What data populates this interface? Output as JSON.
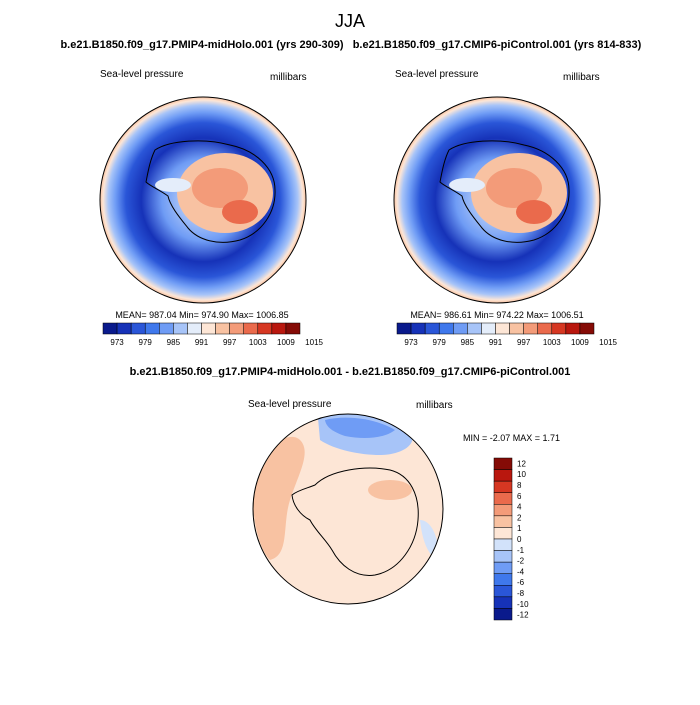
{
  "page_title": "JJA",
  "top_left": {
    "header": "b.e21.B1850.f09_g17.PMIP4-midHolo.001 (yrs 290-309)",
    "label_left": "Sea-level pressure",
    "label_right": "millibars",
    "stats": "MEAN= 987.04  Min= 974.90  Max= 1006.85"
  },
  "top_right": {
    "header": "b.e21.B1850.f09_g17.CMIP6-piControl.001 (yrs 814-833)",
    "label_left": "Sea-level pressure",
    "label_right": "millibars",
    "stats": "MEAN= 986.61  Min= 974.22  Max= 1006.51"
  },
  "bottom": {
    "header": "b.e21.B1850.f09_g17.PMIP4-midHolo.001 - b.e21.B1850.f09_g17.CMIP6-piControl.001",
    "label_left": "Sea-level pressure",
    "label_right": "millibars",
    "stats": "MIN =  -2.07 MAX =   1.71"
  },
  "colors": {
    "main_scale": [
      "#0a1a8c",
      "#1632b8",
      "#2a56d8",
      "#3f78ec",
      "#6f9cf5",
      "#a7c4f8",
      "#e4edfa",
      "#fde6d6",
      "#f8c2a2",
      "#f39b79",
      "#ea6a4c",
      "#d63722",
      "#b9170e",
      "#850b06"
    ],
    "diff_scale": [
      "#0a1a8c",
      "#1632b8",
      "#2a56d8",
      "#3f78ec",
      "#6f9cf5",
      "#a7c4f8",
      "#d2e2fa",
      "#fde6d6",
      "#f8c2a2",
      "#f39b79",
      "#ea6a4c",
      "#d63722",
      "#b9170e",
      "#850b06"
    ],
    "land_outline": "#000000"
  },
  "chart_data": [
    {
      "type": "heatmap",
      "title": "b.e21.B1850.f09_g17.PMIP4-midHolo.001 (yrs 290-309)",
      "variable": "Sea-level pressure",
      "units": "millibars",
      "projection": "south-polar-stereographic",
      "colorbar_ticks": [
        "973",
        "979",
        "985",
        "991",
        "997",
        "1003",
        "1009",
        "1015"
      ],
      "mean": 987.04,
      "min": 974.9,
      "max": 1006.85
    },
    {
      "type": "heatmap",
      "title": "b.e21.B1850.f09_g17.CMIP6-piControl.001 (yrs 814-833)",
      "variable": "Sea-level pressure",
      "units": "millibars",
      "projection": "south-polar-stereographic",
      "colorbar_ticks": [
        "973",
        "979",
        "985",
        "991",
        "997",
        "1003",
        "1009",
        "1015"
      ],
      "mean": 986.61,
      "min": 974.22,
      "max": 1006.51
    },
    {
      "type": "heatmap",
      "title": "b.e21.B1850.f09_g17.PMIP4-midHolo.001 - b.e21.B1850.f09_g17.CMIP6-piControl.001",
      "variable": "Sea-level pressure",
      "units": "millibars",
      "projection": "south-polar-stereographic",
      "colorbar_ticks": [
        "12",
        "10",
        "8",
        "6",
        "4",
        "2",
        "1",
        "0",
        "-1",
        "-2",
        "-4",
        "-6",
        "-8",
        "-10",
        "-12"
      ],
      "min": -2.07,
      "max": 1.71
    }
  ]
}
